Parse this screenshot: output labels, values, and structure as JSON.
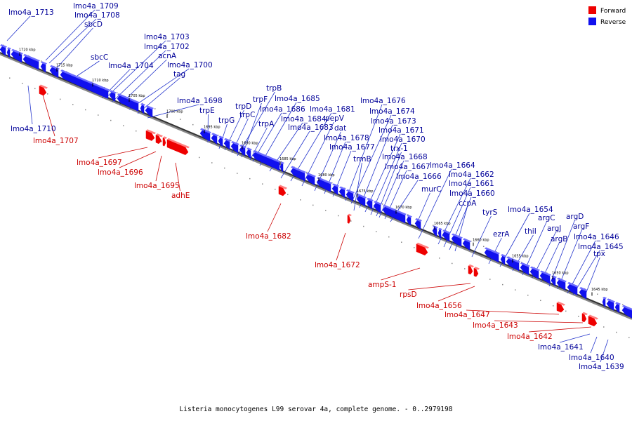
{
  "legend": {
    "forward": {
      "label": "Forward",
      "color": "#ee0000"
    },
    "reverse": {
      "label": "Reverse",
      "color": "#1111ee"
    }
  },
  "caption": "Listeria monocytogenes L99 serovar 4a, complete genome. - 0..2979198",
  "kbp_labels": [
    "1720 kbp",
    "1715 kbp",
    "1710 kbp",
    "1705 kbp",
    "1700 kbp",
    "1695 kbp",
    "1690 kbp",
    "1685 kbp",
    "1680 kbp",
    "1675 kbp",
    "1670 kbp",
    "1665 kbp",
    "1660 kbp",
    "1655 kbp",
    "1650 kbp",
    "1645 kbp"
  ],
  "genes_reverse": [
    "lmo4a_1713",
    "lmo4a_1709",
    "lmo4a_1708",
    "sbcD",
    "sbcC",
    "lmo4a_1704",
    "lmo4a_1703",
    "lmo4a_1702",
    "acnA",
    "lmo4a_1700",
    "tag",
    "lmo4a_1698",
    "lmo4a_1710",
    "trpE",
    "trpG",
    "trpD",
    "trpC",
    "trpB",
    "trpF",
    "trpA",
    "lmo4a_1686",
    "lmo4a_1685",
    "lmo4a_1684",
    "lmo4a_1683",
    "lmo4a_1681",
    "pepV",
    "dat",
    "lmo4a_1678",
    "lmo4a_1677",
    "lmo4a_1676",
    "lmo4a_1674",
    "lmo4a_1673",
    "lmo4a_1671",
    "lmo4a_1670",
    "trx-1",
    "trmB",
    "lmo4a_1668",
    "lmo4a_1667",
    "lmo4a_1666",
    "murC",
    "lmo4a_1664",
    "lmo4a_1662",
    "lmo4a_1661",
    "lmo4a_1660",
    "ccpA",
    "tyrS",
    "ezrA",
    "lmo4a_1654",
    "thiI",
    "argC",
    "argJ",
    "argB",
    "argD",
    "argF",
    "lmo4a_1646",
    "lmo4a_1645",
    "tpx",
    "lmo4a_1641",
    "lmo4a_1640",
    "lmo4a_1639"
  ],
  "genes_forward": [
    "lmo4a_1707",
    "lmo4a_1697",
    "lmo4a_1696",
    "lmo4a_1695",
    "adhE",
    "lmo4a_1682",
    "lmo4a_1672",
    "ampS-1",
    "rpsD",
    "lmo4a_1656",
    "lmo4a_1647",
    "lmo4a_1643",
    "lmo4a_1642"
  ]
}
